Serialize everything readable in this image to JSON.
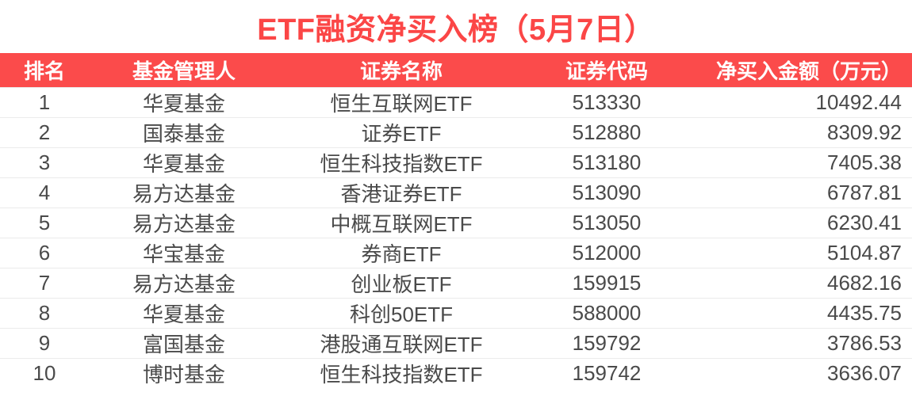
{
  "title": "ETF融资净买入榜（5月7日）",
  "colors": {
    "accent_red": "#fb4b4b",
    "title_red": "#fb4646",
    "header_text": "#ffffff",
    "row_text": "#4a4a4a",
    "divider": "#ebebeb",
    "row_background": "#ffffff"
  },
  "table": {
    "columns": [
      "排名",
      "基金管理人",
      "证券名称",
      "证券代码",
      "净买入金额（万元）"
    ],
    "rows": [
      {
        "rank": "1",
        "manager": "华夏基金",
        "name": "恒生互联网ETF",
        "code": "513330",
        "amount": "10492.44"
      },
      {
        "rank": "2",
        "manager": "国泰基金",
        "name": "证券ETF",
        "code": "512880",
        "amount": "8309.92"
      },
      {
        "rank": "3",
        "manager": "华夏基金",
        "name": "恒生科技指数ETF",
        "code": "513180",
        "amount": "7405.38"
      },
      {
        "rank": "4",
        "manager": "易方达基金",
        "name": "香港证券ETF",
        "code": "513090",
        "amount": "6787.81"
      },
      {
        "rank": "5",
        "manager": "易方达基金",
        "name": "中概互联网ETF",
        "code": "513050",
        "amount": "6230.41"
      },
      {
        "rank": "6",
        "manager": "华宝基金",
        "name": "券商ETF",
        "code": "512000",
        "amount": "5104.87"
      },
      {
        "rank": "7",
        "manager": "易方达基金",
        "name": "创业板ETF",
        "code": "159915",
        "amount": "4682.16"
      },
      {
        "rank": "8",
        "manager": "华夏基金",
        "name": "科创50ETF",
        "code": "588000",
        "amount": "4435.75"
      },
      {
        "rank": "9",
        "manager": "富国基金",
        "name": "港股通互联网ETF",
        "code": "159792",
        "amount": "3786.53"
      },
      {
        "rank": "10",
        "manager": "博时基金",
        "name": "恒生科技指数ETF",
        "code": "159742",
        "amount": "3636.07"
      }
    ]
  },
  "chart_data": {
    "type": "table",
    "title": "ETF融资净买入榜（5月7日）",
    "columns": [
      "排名",
      "基金管理人",
      "证券名称",
      "证券代码",
      "净买入金额（万元）"
    ],
    "rows": [
      [
        "1",
        "华夏基金",
        "恒生互联网ETF",
        "513330",
        10492.44
      ],
      [
        "2",
        "国泰基金",
        "证券ETF",
        "512880",
        8309.92
      ],
      [
        "3",
        "华夏基金",
        "恒生科技指数ETF",
        "513180",
        7405.38
      ],
      [
        "4",
        "易方达基金",
        "香港证券ETF",
        "513090",
        6787.81
      ],
      [
        "5",
        "易方达基金",
        "中概互联网ETF",
        "513050",
        6230.41
      ],
      [
        "6",
        "华宝基金",
        "券商ETF",
        "512000",
        5104.87
      ],
      [
        "7",
        "易方达基金",
        "创业板ETF",
        "159915",
        4682.16
      ],
      [
        "8",
        "华夏基金",
        "科创50ETF",
        "588000",
        4435.75
      ],
      [
        "9",
        "富国基金",
        "港股通互联网ETF",
        "159792",
        3786.53
      ],
      [
        "10",
        "博时基金",
        "恒生科技指数ETF",
        "159742",
        3636.07
      ]
    ]
  }
}
